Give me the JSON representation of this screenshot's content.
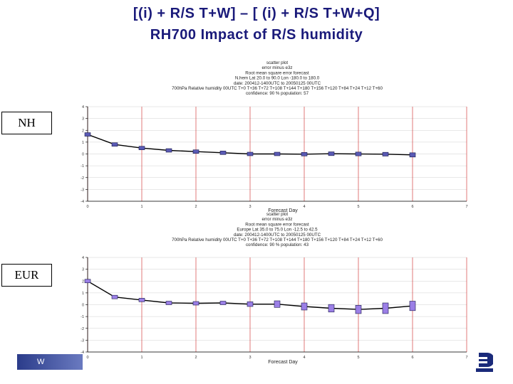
{
  "slide": {
    "title_line1": "[(i) + R/S T+W] – [ (i) + R/S T+W+Q]",
    "title_line2": "RH700 Impact of R/S humidity",
    "title_color": "#1a1a7a",
    "label_nh": "NH",
    "label_eur": "EUR",
    "footer_text": "W"
  },
  "chart_data": [
    {
      "type": "line",
      "region": "NH",
      "header": [
        "scatter plot",
        "error minus e3z",
        "Root mean square error forecast",
        "N.hem Lat 20.0 to 90.0 Lon -180.0 to 180.0",
        "date: 200412-1400UTC to 20050125 00UTC",
        "700hPa Relative humidity 00UTC T+0 T+36 T+72 T+108 T+144 T+180 T+156 T+120 T+84 T+24 T+12 T+60",
        "confidence: 90 % population: 57"
      ],
      "xlabel": "Forecast Day",
      "xlim": [
        0,
        7
      ],
      "ylim": [
        -4,
        4
      ],
      "xticks": [
        0,
        1,
        2,
        3,
        4,
        5,
        6,
        7
      ],
      "yticks": [
        -4,
        -3,
        -2,
        -1,
        0,
        1,
        2,
        3,
        4
      ],
      "points": [
        {
          "x": 0.0,
          "y": 1.65,
          "ci": 0.08
        },
        {
          "x": 0.5,
          "y": 0.8,
          "ci": 0.08
        },
        {
          "x": 1.0,
          "y": 0.5,
          "ci": 0.08
        },
        {
          "x": 1.5,
          "y": 0.3,
          "ci": 0.08
        },
        {
          "x": 2.0,
          "y": 0.2,
          "ci": 0.08
        },
        {
          "x": 2.5,
          "y": 0.1,
          "ci": 0.08
        },
        {
          "x": 3.0,
          "y": 0.0,
          "ci": 0.14
        },
        {
          "x": 3.5,
          "y": 0.0,
          "ci": 0.14
        },
        {
          "x": 4.0,
          "y": -0.02,
          "ci": 0.14
        },
        {
          "x": 4.5,
          "y": 0.02,
          "ci": 0.16
        },
        {
          "x": 5.0,
          "y": 0.0,
          "ci": 0.16
        },
        {
          "x": 5.5,
          "y": -0.02,
          "ci": 0.16
        },
        {
          "x": 6.0,
          "y": -0.08,
          "ci": 0.18
        }
      ]
    },
    {
      "type": "line",
      "region": "EUR",
      "header": [
        "scatter plot",
        "error minus e3z",
        "Root mean square error forecast",
        "Europe Lat 35.0 to 75.0 Lon -12.5 to 42.5",
        "date: 200412-1400UTC to 20050125 00UTC",
        "700hPa Relative humidity 00UTC T+0 T+36 T+72 T+108 T+144 T+180 T+156 T+120 T+84 T+24 T+12 T+60",
        "confidence: 90 % population: 43"
      ],
      "xlabel": "Forecast Day",
      "xlim": [
        0,
        7
      ],
      "ylim": [
        -4,
        4
      ],
      "xticks": [
        0,
        1,
        2,
        3,
        4,
        5,
        6,
        7
      ],
      "yticks": [
        -4,
        -3,
        -2,
        -1,
        0,
        1,
        2,
        3,
        4
      ],
      "points": [
        {
          "x": 0.0,
          "y": 2.0,
          "ci": 0.15
        },
        {
          "x": 0.5,
          "y": 0.65,
          "ci": 0.15
        },
        {
          "x": 1.0,
          "y": 0.4,
          "ci": 0.12
        },
        {
          "x": 1.5,
          "y": 0.15,
          "ci": 0.12
        },
        {
          "x": 2.0,
          "y": 0.12,
          "ci": 0.12
        },
        {
          "x": 2.5,
          "y": 0.15,
          "ci": 0.15
        },
        {
          "x": 3.0,
          "y": 0.05,
          "ci": 0.2
        },
        {
          "x": 3.5,
          "y": 0.05,
          "ci": 0.28
        },
        {
          "x": 4.0,
          "y": -0.15,
          "ci": 0.3
        },
        {
          "x": 4.5,
          "y": -0.3,
          "ci": 0.32
        },
        {
          "x": 5.0,
          "y": -0.4,
          "ci": 0.35
        },
        {
          "x": 5.5,
          "y": -0.3,
          "ci": 0.45
        },
        {
          "x": 6.0,
          "y": -0.1,
          "ci": 0.4
        }
      ]
    }
  ],
  "colors": {
    "line": "#000000",
    "marker_nh": "#5a5ab4",
    "marker_eur": "#9b7fe6",
    "marker_edge": "#1a1a4a",
    "vgrid": "#cc2222",
    "hgrid": "#d0d0d0",
    "axis": "#000000"
  }
}
